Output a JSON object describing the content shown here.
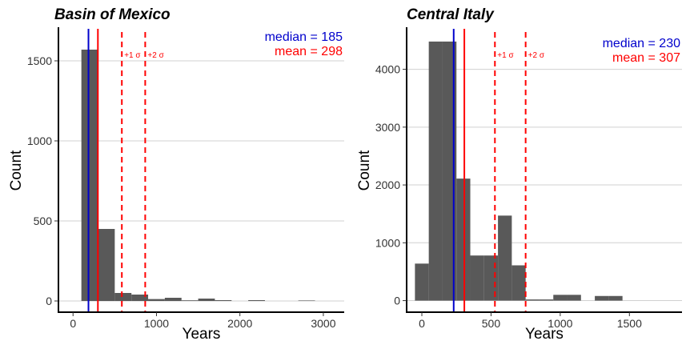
{
  "chart_data": [
    {
      "type": "bar",
      "title": "Basin of Mexico",
      "xlabel": "Years",
      "ylabel": "Count",
      "xlim": [
        -175,
        3250
      ],
      "ylim": [
        -70,
        1700
      ],
      "xticks": [
        0,
        1000,
        2000,
        3000
      ],
      "xtick_labels": [
        "0",
        "1000",
        "2000",
        "3000"
      ],
      "yticks": [
        0,
        500,
        1000,
        1500
      ],
      "ytick_labels": [
        "0",
        "500",
        "1000",
        "1500"
      ],
      "bin_width": 200,
      "bins": [
        {
          "x0": 100,
          "value": 1570
        },
        {
          "x0": 300,
          "value": 450
        },
        {
          "x0": 500,
          "value": 50
        },
        {
          "x0": 700,
          "value": 40
        },
        {
          "x0": 900,
          "value": 12
        },
        {
          "x0": 1100,
          "value": 20
        },
        {
          "x0": 1300,
          "value": 4
        },
        {
          "x0": 1500,
          "value": 15
        },
        {
          "x0": 1700,
          "value": 5
        },
        {
          "x0": 2100,
          "value": 5
        },
        {
          "x0": 2700,
          "value": 3
        }
      ],
      "median": 185,
      "mean": 298,
      "sigma_lines": [
        585,
        865
      ],
      "sigma_labels": [
        "+1 σ",
        "+2 σ"
      ],
      "median_label": "median = 185",
      "mean_label": "mean = 298",
      "grid": "horizontal",
      "colors": {
        "bar": "#595959",
        "median": "#0000cc",
        "mean": "#ff0000"
      }
    },
    {
      "type": "bar",
      "title": "Central Italy",
      "xlabel": "Years",
      "ylabel": "Count",
      "xlim": [
        -110,
        1880
      ],
      "ylim": [
        -200,
        4700
      ],
      "xticks": [
        0,
        500,
        1000,
        1500
      ],
      "xtick_labels": [
        "0",
        "500",
        "1000",
        "1500"
      ],
      "yticks": [
        0,
        1000,
        2000,
        3000,
        4000
      ],
      "ytick_labels": [
        "0",
        "1000",
        "2000",
        "3000",
        "4000"
      ],
      "bin_width": 100,
      "bins": [
        {
          "x0": -50,
          "value": 640
        },
        {
          "x0": 50,
          "value": 4480
        },
        {
          "x0": 150,
          "value": 4480
        },
        {
          "x0": 250,
          "value": 2110
        },
        {
          "x0": 350,
          "value": 780
        },
        {
          "x0": 450,
          "value": 780
        },
        {
          "x0": 550,
          "value": 1470
        },
        {
          "x0": 650,
          "value": 610
        },
        {
          "x0": 750,
          "value": 20
        },
        {
          "x0": 850,
          "value": 20
        },
        {
          "x0": 950,
          "value": 100
        },
        {
          "x0": 1050,
          "value": 100
        },
        {
          "x0": 1250,
          "value": 80
        },
        {
          "x0": 1350,
          "value": 80
        }
      ],
      "median": 230,
      "mean": 307,
      "sigma_lines": [
        528,
        750
      ],
      "sigma_labels": [
        "+1 σ",
        "+2 σ"
      ],
      "median_label": "median = 230",
      "mean_label": "mean = 307",
      "grid": "horizontal",
      "colors": {
        "bar": "#595959",
        "median": "#0000cc",
        "mean": "#ff0000"
      }
    }
  ]
}
